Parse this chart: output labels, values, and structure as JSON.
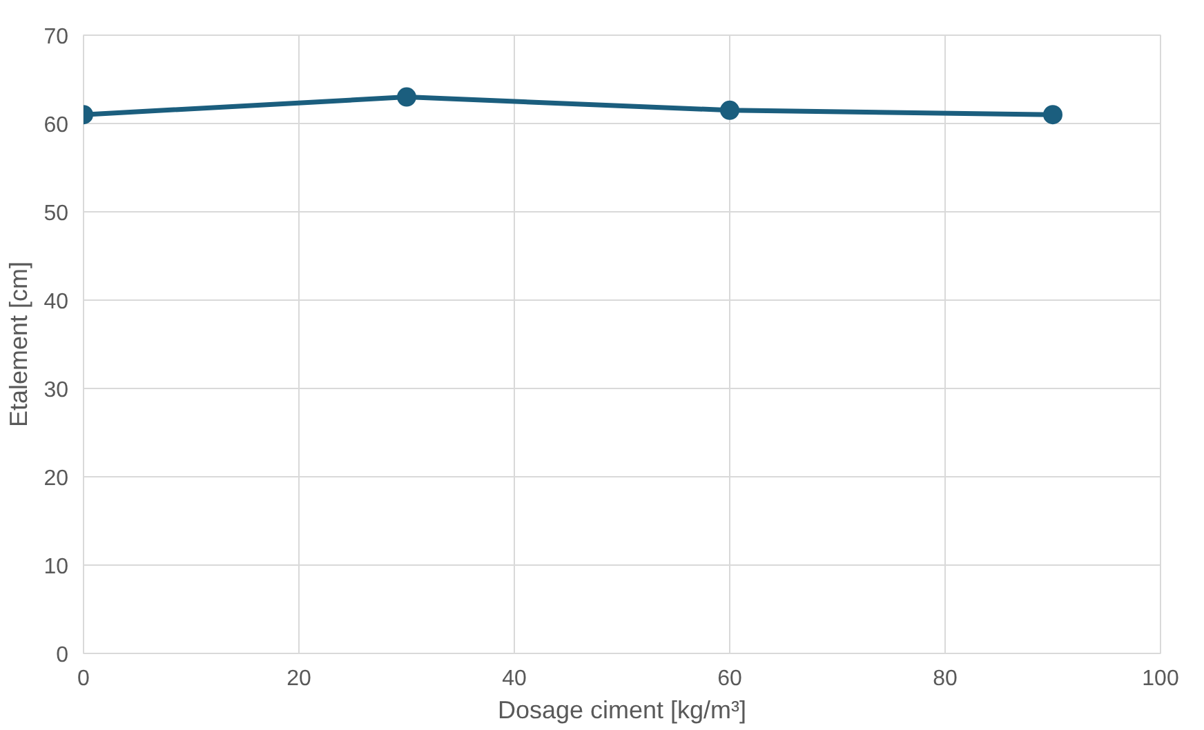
{
  "chart_data": {
    "type": "line",
    "xlabel": "Dosage ciment [kg/m³]",
    "ylabel": "Etalement [cm]",
    "x": [
      0,
      30,
      60,
      90
    ],
    "series": [
      {
        "color": "#1b5e7e",
        "values": [
          61,
          63,
          61.5,
          61
        ]
      }
    ],
    "xlim": [
      0,
      100
    ],
    "xticks": [
      0,
      20,
      40,
      60,
      80,
      100
    ],
    "ylim": [
      0,
      70
    ],
    "yticks": [
      0,
      10,
      20,
      30,
      40,
      50,
      60,
      70
    ],
    "grid": true,
    "marker": "circle",
    "line_style": "solid"
  }
}
